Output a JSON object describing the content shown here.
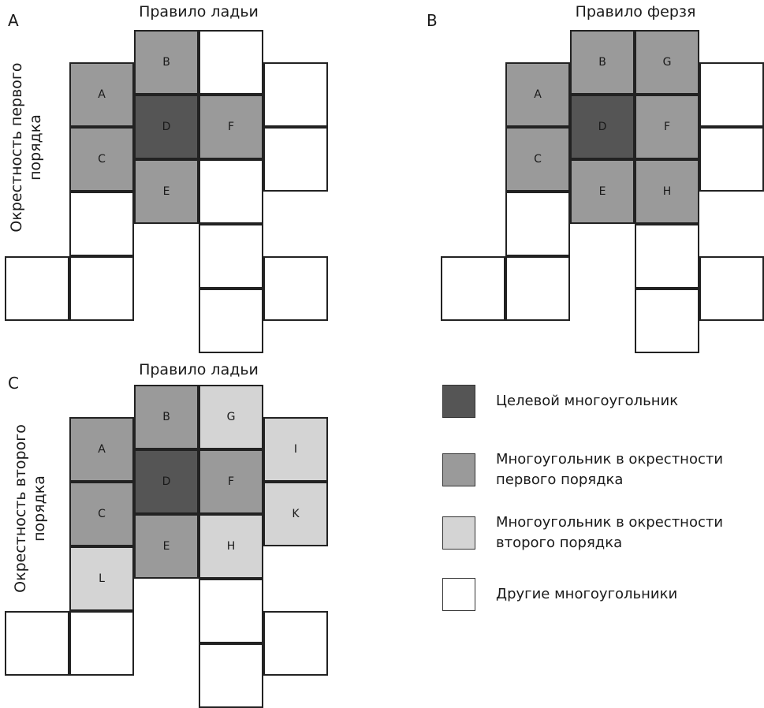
{
  "colors": {
    "target": "#555555",
    "first_order": "#9a9a9a",
    "second_order": "#d4d4d4",
    "other": "#ffffff"
  },
  "panels": {
    "a": {
      "letter": "A",
      "title": "Правило ладьи",
      "side_label": "Окрестность первого\nпорядка"
    },
    "b": {
      "letter": "B",
      "title": "Правило ферзя"
    },
    "c": {
      "letter": "C",
      "title": "Правило ладьи",
      "side_label": "Окрестность второго\nпорядка"
    }
  },
  "grid_cells": {
    "a": [
      {
        "col": 2,
        "row": 0,
        "label": "B",
        "kind": "first_order"
      },
      {
        "col": 3,
        "row": 0,
        "label": "",
        "kind": "other"
      },
      {
        "col": 1,
        "row": 1,
        "label": "A",
        "kind": "first_order"
      },
      {
        "col": 4,
        "row": 1,
        "label": "",
        "kind": "other"
      },
      {
        "col": 2,
        "row": 2,
        "label": "D",
        "kind": "target"
      },
      {
        "col": 3,
        "row": 2,
        "label": "F",
        "kind": "first_order"
      },
      {
        "col": 1,
        "row": 3,
        "label": "C",
        "kind": "first_order"
      },
      {
        "col": 4,
        "row": 3,
        "label": "",
        "kind": "other"
      },
      {
        "col": 2,
        "row": 4,
        "label": "E",
        "kind": "first_order"
      },
      {
        "col": 3,
        "row": 4,
        "label": "",
        "kind": "other"
      },
      {
        "col": 1,
        "row": 5,
        "label": "",
        "kind": "other"
      },
      {
        "col": 3,
        "row": 6,
        "label": "",
        "kind": "other"
      },
      {
        "col": 0,
        "row": 7,
        "label": "",
        "kind": "other"
      },
      {
        "col": 1,
        "row": 7,
        "label": "",
        "kind": "other"
      },
      {
        "col": 4,
        "row": 7,
        "label": "",
        "kind": "other"
      },
      {
        "col": 3,
        "row": 8,
        "label": "",
        "kind": "other"
      }
    ],
    "b": [
      {
        "col": 2,
        "row": 0,
        "label": "B",
        "kind": "first_order"
      },
      {
        "col": 3,
        "row": 0,
        "label": "G",
        "kind": "first_order"
      },
      {
        "col": 1,
        "row": 1,
        "label": "A",
        "kind": "first_order"
      },
      {
        "col": 4,
        "row": 1,
        "label": "",
        "kind": "other"
      },
      {
        "col": 2,
        "row": 2,
        "label": "D",
        "kind": "target"
      },
      {
        "col": 3,
        "row": 2,
        "label": "F",
        "kind": "first_order"
      },
      {
        "col": 1,
        "row": 3,
        "label": "C",
        "kind": "first_order"
      },
      {
        "col": 4,
        "row": 3,
        "label": "",
        "kind": "other"
      },
      {
        "col": 2,
        "row": 4,
        "label": "E",
        "kind": "first_order"
      },
      {
        "col": 3,
        "row": 4,
        "label": "H",
        "kind": "first_order"
      },
      {
        "col": 1,
        "row": 5,
        "label": "",
        "kind": "other"
      },
      {
        "col": 3,
        "row": 6,
        "label": "",
        "kind": "other"
      },
      {
        "col": 0,
        "row": 7,
        "label": "",
        "kind": "other"
      },
      {
        "col": 1,
        "row": 7,
        "label": "",
        "kind": "other"
      },
      {
        "col": 4,
        "row": 7,
        "label": "",
        "kind": "other"
      },
      {
        "col": 3,
        "row": 8,
        "label": "",
        "kind": "other"
      }
    ],
    "c": [
      {
        "col": 2,
        "row": 0,
        "label": "B",
        "kind": "first_order"
      },
      {
        "col": 3,
        "row": 0,
        "label": "G",
        "kind": "second_order"
      },
      {
        "col": 1,
        "row": 1,
        "label": "A",
        "kind": "first_order"
      },
      {
        "col": 4,
        "row": 1,
        "label": "I",
        "kind": "second_order"
      },
      {
        "col": 2,
        "row": 2,
        "label": "D",
        "kind": "target"
      },
      {
        "col": 3,
        "row": 2,
        "label": "F",
        "kind": "first_order"
      },
      {
        "col": 1,
        "row": 3,
        "label": "C",
        "kind": "first_order"
      },
      {
        "col": 4,
        "row": 3,
        "label": "K",
        "kind": "second_order"
      },
      {
        "col": 2,
        "row": 4,
        "label": "E",
        "kind": "first_order"
      },
      {
        "col": 3,
        "row": 4,
        "label": "H",
        "kind": "second_order"
      },
      {
        "col": 1,
        "row": 5,
        "label": "L",
        "kind": "second_order"
      },
      {
        "col": 3,
        "row": 6,
        "label": "",
        "kind": "other"
      },
      {
        "col": 0,
        "row": 7,
        "label": "",
        "kind": "other"
      },
      {
        "col": 1,
        "row": 7,
        "label": "",
        "kind": "other"
      },
      {
        "col": 4,
        "row": 7,
        "label": "",
        "kind": "other"
      },
      {
        "col": 3,
        "row": 8,
        "label": "",
        "kind": "other"
      }
    ]
  },
  "legend": {
    "target": "Целевой многоугольник",
    "first_order": "Многоугольник в окрестности\nпервого порядка",
    "second_order": "Многоугольник в окрестности\nвторого порядка",
    "other": "Другие многоугольники"
  }
}
